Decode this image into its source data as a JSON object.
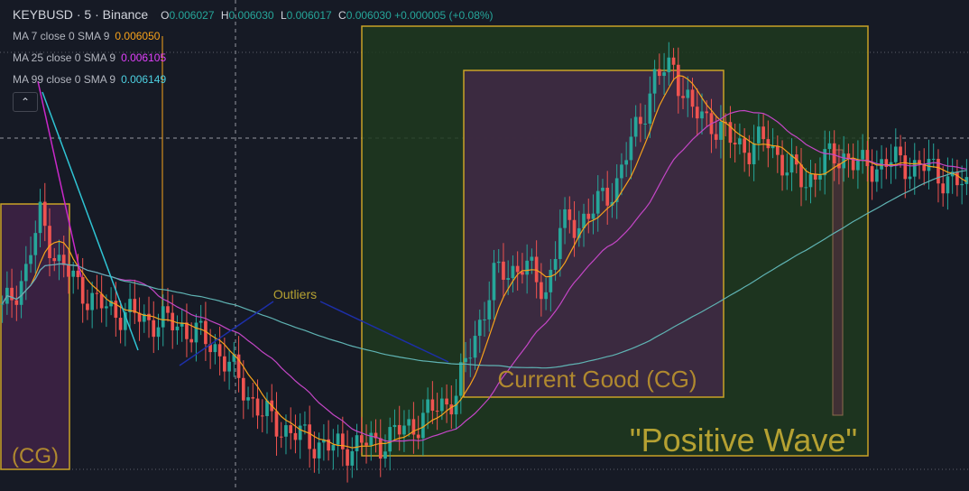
{
  "header": {
    "symbol": "KEYBUSD",
    "sep1": "·",
    "interval": "5",
    "sep2": "·",
    "exchange": "Binance",
    "open_label": "O",
    "open": "0.006027",
    "high_label": "H",
    "high": "0.006030",
    "low_label": "L",
    "low": "0.006017",
    "close_label": "C",
    "close": "0.006030",
    "change": "+0.000005 (+0.08%)"
  },
  "indicators": [
    {
      "label": "MA 7 close 0 SMA 9",
      "value": "0.006050",
      "color": "#f7a21b"
    },
    {
      "label": "MA 25 close 0 SMA 9",
      "value": "0.006105",
      "color": "#e040fb"
    },
    {
      "label": "MA 99 close 0 SMA 9",
      "value": "0.006149",
      "color": "#4dd0e1"
    }
  ],
  "collapse_icon": "chevron-up-icon",
  "colors": {
    "up": "#26a69a",
    "down": "#ef5350",
    "ma7": "#f7a21b",
    "ma25": "#c446c6",
    "ma99": "#5fb3b3",
    "box_border": "#c9a227",
    "positive_wave_fill": "#1f3a1f",
    "current_good_fill": "#3d2a42",
    "annotation_text": "#b5a132",
    "outlier_line": "#1d2fa8",
    "trend_magenta": "#c928c9",
    "trend_cyan": "#2fc4d4"
  },
  "annotations": {
    "outliers": "Outliers",
    "current_good": "Current Good (CG)",
    "positive_wave": "\"Positive Wave\"",
    "cg_left": "(CG)"
  },
  "chart_data": {
    "type": "candlestick",
    "title": "KEYBUSD · 5 · Binance",
    "candle_count": 155,
    "close_profile": [
      [
        0,
        0.006035
      ],
      [
        5,
        0.006065
      ],
      [
        8,
        0.006105
      ],
      [
        12,
        0.00607
      ],
      [
        20,
        0.00604
      ],
      [
        30,
        0.00603
      ],
      [
        38,
        0.006025
      ],
      [
        45,
        0.00601
      ],
      [
        50,
        0.005985
      ],
      [
        55,
        0.00596
      ],
      [
        62,
        0.005945
      ],
      [
        70,
        0.005935
      ],
      [
        80,
        0.00594
      ],
      [
        88,
        0.005955
      ],
      [
        96,
        0.005975
      ],
      [
        104,
        0.00606
      ],
      [
        110,
        0.00607
      ],
      [
        115,
        0.00605
      ],
      [
        118,
        0.006095
      ],
      [
        124,
        0.006105
      ],
      [
        130,
        0.00613
      ],
      [
        138,
        0.006205
      ],
      [
        142,
        0.006215
      ],
      [
        146,
        0.00618
      ],
      [
        150,
        0.006175
      ],
      [
        154,
        0.00616
      ],
      [
        158,
        0.006155
      ],
      [
        162,
        0.00616
      ],
      [
        166,
        0.00614
      ],
      [
        170,
        0.00613
      ],
      [
        174,
        0.006145
      ],
      [
        178,
        0.00615
      ],
      [
        182,
        0.00614
      ],
      [
        188,
        0.006145
      ],
      [
        196,
        0.00614
      ],
      [
        204,
        0.006125
      ]
    ],
    "price_range": [
      0.00592,
      0.00623
    ],
    "grid": false,
    "series": [
      {
        "name": "MA 7 close 0 SMA 9",
        "period": 7
      },
      {
        "name": "MA 25 close 0 SMA 9",
        "period": 25
      },
      {
        "name": "MA 99 close 0 SMA 9",
        "period": 99
      }
    ]
  }
}
